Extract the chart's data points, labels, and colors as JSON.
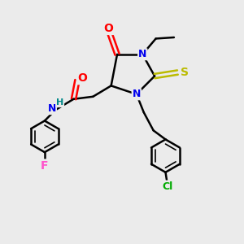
{
  "bg_color": "#ebebeb",
  "atom_colors": {
    "O": "#ff0000",
    "N": "#0000ee",
    "S": "#bbbb00",
    "Cl": "#00aa00",
    "F": "#ff55cc",
    "H": "#008888",
    "C": "#000000"
  }
}
